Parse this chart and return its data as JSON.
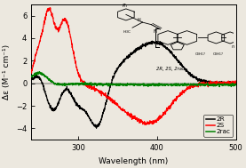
{
  "xlim": [
    240,
    500
  ],
  "ylim": [
    -5,
    7
  ],
  "xlabel": "Wavelength (nm)",
  "ylabel": "Δε (M⁻¹ cm⁻¹)",
  "xticks": [
    300,
    400,
    500
  ],
  "yticks": [
    -4,
    -2,
    0,
    2,
    4,
    6
  ],
  "legend_labels": [
    "2R",
    "2S",
    "2rac"
  ],
  "legend_colors": [
    "black",
    "red",
    "green"
  ],
  "label_fontsize": 6.5,
  "tick_fontsize": 6,
  "background_color": "#ece8df",
  "inset_label": "2R, 2S, 2rac"
}
